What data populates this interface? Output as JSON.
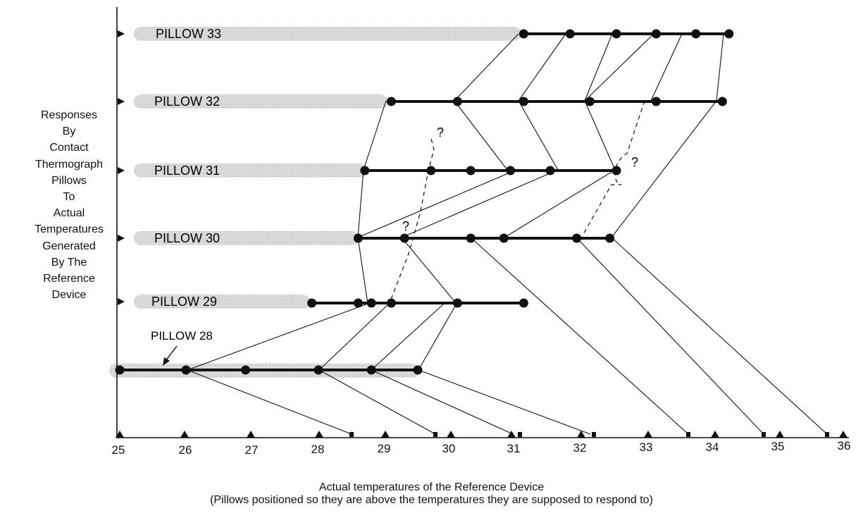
{
  "y_label_lines": [
    "Responses",
    "By",
    "Contact",
    "Thermograph",
    "Pillows",
    "To",
    "Actual",
    "Temperatures",
    "Generated",
    "By The",
    "Reference",
    "Device"
  ],
  "x_axis": {
    "ticks": [
      "25",
      "26",
      "27",
      "28",
      "29",
      "30",
      "31",
      "32",
      "33",
      "34",
      "35",
      "36"
    ],
    "caption_line1": "Actual temperatures of the Reference Device",
    "caption_line2": "(Pillows positioned so they are above the temperatures they are supposed to respond to)"
  },
  "pillows": [
    {
      "label": "PILLOW 33",
      "points": [
        31.1,
        31.8,
        32.5,
        33.1,
        33.7,
        34.2
      ]
    },
    {
      "label": "PILLOW 32",
      "points": [
        29.1,
        30.1,
        31.1,
        32.1,
        33.1,
        34.1
      ]
    },
    {
      "label": "PILLOW 31",
      "points": [
        28.7,
        29.7,
        30.3,
        30.9,
        31.5,
        32.5
      ]
    },
    {
      "label": "PILLOW 30",
      "points": [
        28.6,
        29.3,
        30.3,
        30.8,
        31.9,
        32.4
      ]
    },
    {
      "label": "PILLOW 29",
      "points": [
        27.9,
        28.6,
        28.8,
        29.1,
        30.1,
        31.1
      ]
    },
    {
      "label": "PILLOW 28",
      "points": [
        25.0,
        26.0,
        26.9,
        28.0,
        28.8,
        29.5
      ]
    }
  ],
  "annotations": [
    "?",
    "?",
    "?"
  ]
}
